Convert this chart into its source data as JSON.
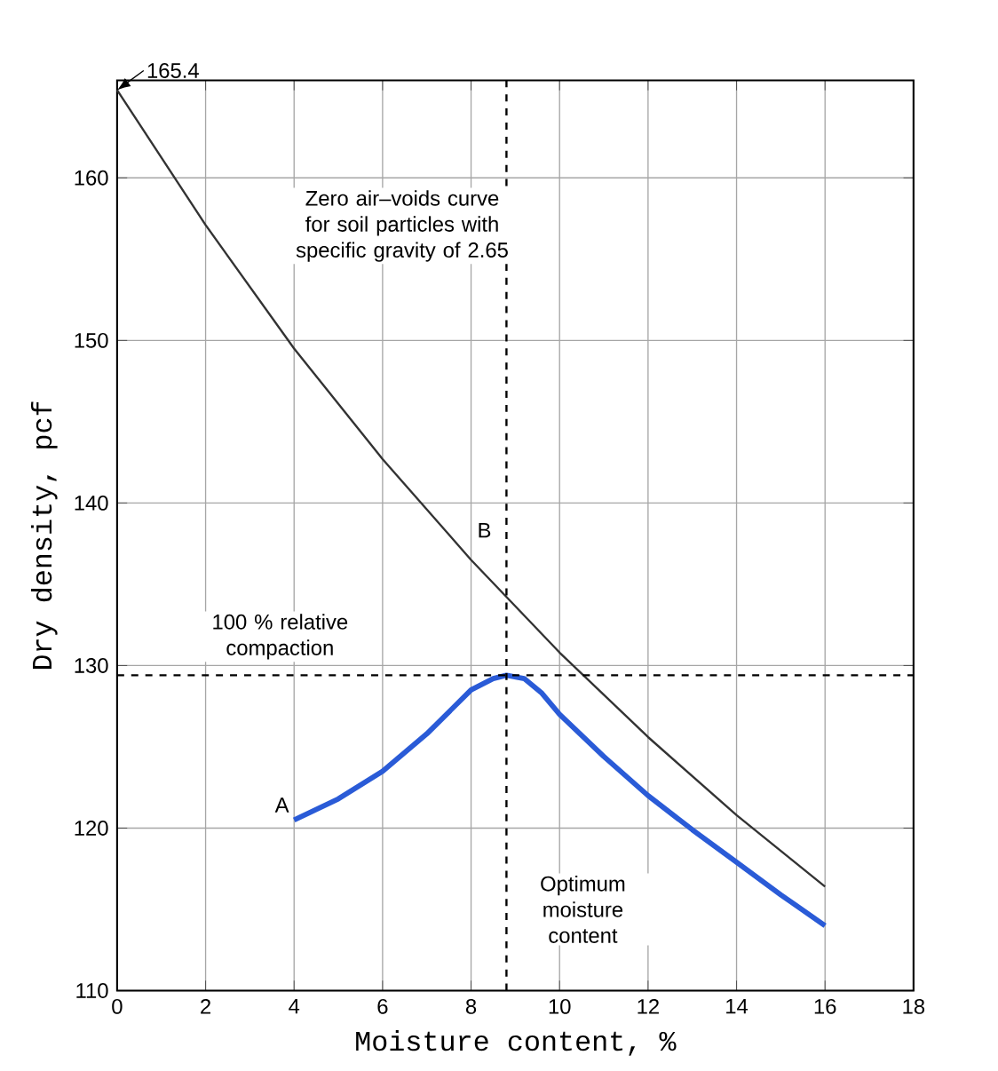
{
  "chart_data": {
    "type": "line",
    "xlabel": "Moisture content, %",
    "ylabel": "Dry density, pcf",
    "x": [
      0,
      2,
      4,
      6,
      8,
      10,
      12,
      14,
      16
    ],
    "series": [
      {
        "color": "#333333",
        "values": [
          165.4,
          157.1,
          149.5,
          142.7,
          136.5,
          130.8,
          125.6,
          120.8,
          116.4
        ]
      },
      {
        "color": "#2a5bd7",
        "x": [
          4,
          5,
          6,
          7,
          8,
          8.5,
          8.8,
          9.2,
          9.6,
          10,
          11,
          12,
          13,
          14,
          15,
          16
        ],
        "values": [
          120.5,
          121.8,
          123.5,
          125.8,
          128.5,
          129.2,
          129.4,
          129.2,
          128.3,
          127,
          124.4,
          122,
          119.9,
          117.9,
          115.9,
          114
        ]
      }
    ],
    "xlim": [
      0,
      18
    ],
    "ylim": [
      110,
      166
    ],
    "xticks": [
      0,
      2,
      4,
      6,
      8,
      10,
      12,
      14,
      16,
      18
    ],
    "yticks": [
      110,
      120,
      130,
      140,
      150,
      160
    ],
    "grid": true,
    "line_style": "solid",
    "marker": "none",
    "ref_lines": [
      {
        "axis": "y",
        "value": 129.4,
        "label": "100 % relative compaction",
        "line_style": "dashed"
      },
      {
        "axis": "x",
        "value": 8.8,
        "label": "Optimum moisture content",
        "line_style": "dashed"
      }
    ],
    "annotations": [
      {
        "text": "165.4",
        "x": 0,
        "y": 165.4
      },
      "Zero air–voids curve for soil particles with specific gravity of 2.65",
      {
        "text": "A",
        "x": 4,
        "y": 120.5
      },
      {
        "text": "B",
        "x": 8.2,
        "y": 136.5
      }
    ]
  }
}
